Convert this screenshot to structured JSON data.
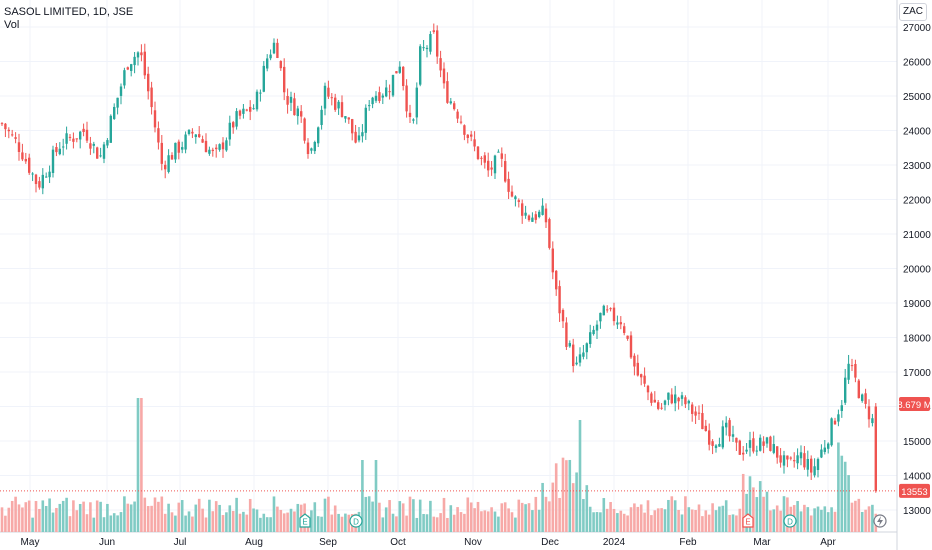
{
  "header": {
    "title": "SASOL LIMITED, 1D, JSE",
    "vol_label": "Vol",
    "currency": "ZAC"
  },
  "colors": {
    "up": "#26a69a",
    "down": "#ef5350",
    "up_volume": "#80cbc4",
    "down_volume": "#f7a9a7",
    "grid": "#f0f3fa",
    "axis_text": "#131722"
  },
  "markers": {
    "earnings_label": "E",
    "dividend_label": "D"
  },
  "chart_data": {
    "type": "candlestick",
    "title": "SASOL LIMITED, 1D, JSE",
    "y_axis": {
      "ticks": [
        13000,
        14000,
        15000,
        16000,
        17000,
        18000,
        19000,
        20000,
        21000,
        22000,
        23000,
        24000,
        25000,
        26000,
        27000
      ],
      "range": [
        12400,
        27200
      ]
    },
    "x_axis": {
      "ticks": [
        "May",
        "Jun",
        "Jul",
        "Aug",
        "Sep",
        "Oct",
        "Nov",
        "Dec",
        "2024",
        "Feb",
        "Mar",
        "Apr"
      ]
    },
    "price_label": "13553",
    "volume_label": "8.679 M",
    "key_prices": [
      {
        "date": "2023-05",
        "approx_close": 23800
      },
      {
        "date": "2023-06",
        "approx_close": 26300
      },
      {
        "date": "2023-07",
        "approx_close": 22800
      },
      {
        "date": "2023-08",
        "approx_close": 26900
      },
      {
        "date": "2023-09",
        "approx_close": 24100
      },
      {
        "date": "2023-10",
        "approx_close": 26800
      },
      {
        "date": "2023-11",
        "approx_close": 23000
      },
      {
        "date": "2023-12",
        "approx_close": 17000
      },
      {
        "date": "2024-01",
        "approx_close": 18800
      },
      {
        "date": "2024-02",
        "approx_close": 15000
      },
      {
        "date": "2024-03",
        "approx_close": 14600
      },
      {
        "date": "2024-04",
        "approx_close": 17200
      },
      {
        "date": "2024-04-end",
        "approx_close": 13553
      }
    ],
    "events": [
      {
        "type": "E",
        "near": "Sep"
      },
      {
        "type": "D",
        "near": "Sep"
      },
      {
        "type": "E",
        "near": "Mar"
      },
      {
        "type": "D",
        "near": "Mar"
      }
    ]
  }
}
